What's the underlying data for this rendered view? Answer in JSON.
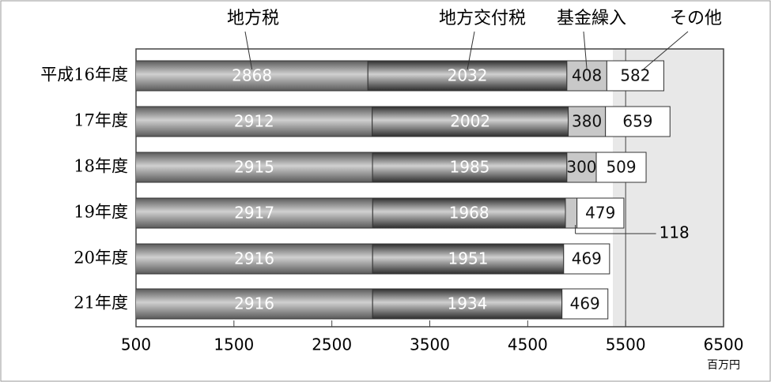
{
  "chart_data": {
    "type": "stacked-barh",
    "categories": [
      "平成16年度",
      "17年度",
      "18年度",
      "19年度",
      "20年度",
      "21年度"
    ],
    "series": [
      {
        "name": "地方税",
        "color": "#5a5a5a",
        "values": [
          2868,
          2912,
          2915,
          2917,
          2916,
          2916
        ]
      },
      {
        "name": "地方交付税",
        "color": "#2e2e2e",
        "values": [
          2032,
          2002,
          1985,
          1968,
          1951,
          1934
        ]
      },
      {
        "name": "基金繰入",
        "color": "#c8c8c8",
        "values": [
          408,
          380,
          300,
          118,
          null,
          null
        ]
      },
      {
        "name": "その他",
        "color": "#ffffff",
        "values": [
          582,
          659,
          509,
          479,
          469,
          469
        ]
      }
    ],
    "xlim": [
      500,
      6500
    ],
    "xticks": [
      500,
      1500,
      2500,
      3500,
      4500,
      5500,
      6500
    ],
    "x_unit": "百万円"
  }
}
